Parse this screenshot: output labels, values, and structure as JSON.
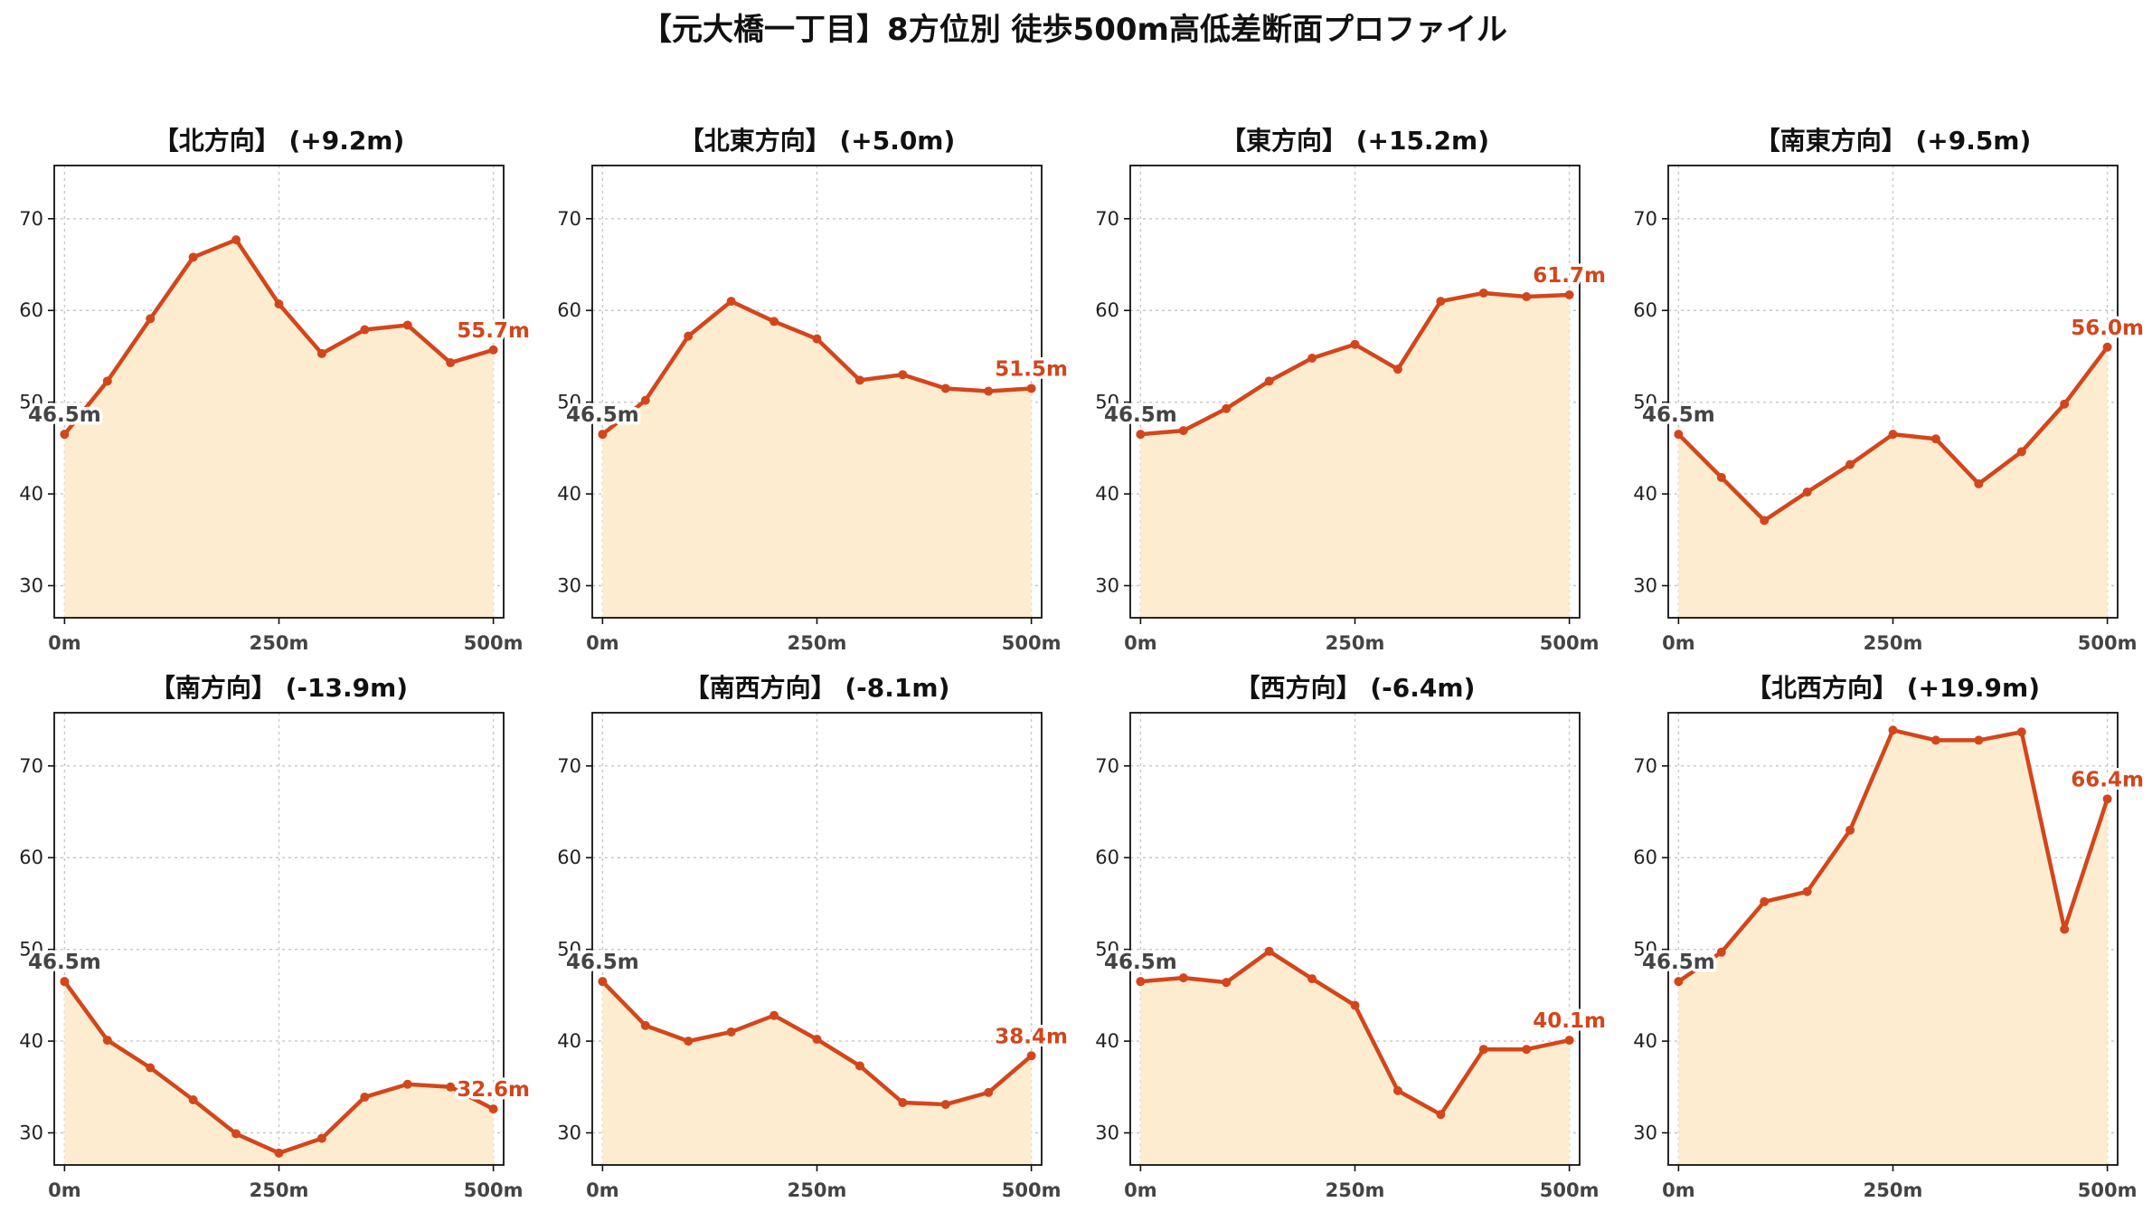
{
  "title": "【元大橋一丁目】8方位別 徒歩500m高低差断面プロファイル",
  "colors": {
    "line": "#d3461c",
    "fill": "#fdeccf",
    "start_label": "#444444",
    "end_label": "#d3461c"
  },
  "chart_data": [
    {
      "type": "area",
      "title": "【北方向】 (+9.2m)",
      "x": [
        0,
        50,
        100,
        150,
        200,
        250,
        300,
        350,
        400,
        450,
        500
      ],
      "values": [
        46.5,
        52.3,
        59.1,
        65.8,
        67.7,
        60.7,
        55.3,
        57.9,
        58.4,
        54.3,
        55.7
      ],
      "ylim": [
        26.5,
        75.8
      ],
      "xlim": [
        -12,
        512
      ],
      "yticks": [
        30,
        40,
        50,
        60,
        70
      ],
      "xticks": [
        0,
        250,
        500
      ],
      "xtick_labels": [
        "0m",
        "250m",
        "500m"
      ],
      "start_label": "46.5m",
      "end_label": "55.7m",
      "grid": true
    },
    {
      "type": "area",
      "title": "【北東方向】 (+5.0m)",
      "x": [
        0,
        50,
        100,
        150,
        200,
        250,
        300,
        350,
        400,
        450,
        500
      ],
      "values": [
        46.5,
        50.2,
        57.2,
        61.0,
        58.8,
        56.9,
        52.4,
        53.0,
        51.5,
        51.2,
        51.5
      ],
      "ylim": [
        26.5,
        75.8
      ],
      "xlim": [
        -12,
        512
      ],
      "yticks": [
        30,
        40,
        50,
        60,
        70
      ],
      "xticks": [
        0,
        250,
        500
      ],
      "xtick_labels": [
        "0m",
        "250m",
        "500m"
      ],
      "start_label": "46.5m",
      "end_label": "51.5m",
      "grid": true
    },
    {
      "type": "area",
      "title": "【東方向】 (+15.2m)",
      "x": [
        0,
        50,
        100,
        150,
        200,
        250,
        300,
        350,
        400,
        450,
        500
      ],
      "values": [
        46.5,
        46.9,
        49.3,
        52.3,
        54.8,
        56.3,
        53.6,
        61.0,
        61.9,
        61.5,
        61.7
      ],
      "ylim": [
        26.5,
        75.8
      ],
      "xlim": [
        -12,
        512
      ],
      "yticks": [
        30,
        40,
        50,
        60,
        70
      ],
      "xticks": [
        0,
        250,
        500
      ],
      "xtick_labels": [
        "0m",
        "250m",
        "500m"
      ],
      "start_label": "46.5m",
      "end_label": "61.7m",
      "grid": true
    },
    {
      "type": "area",
      "title": "【南東方向】 (+9.5m)",
      "x": [
        0,
        50,
        100,
        150,
        200,
        250,
        300,
        350,
        400,
        450,
        500
      ],
      "values": [
        46.5,
        41.8,
        37.1,
        40.2,
        43.2,
        46.5,
        46.0,
        41.1,
        44.6,
        49.8,
        56.0
      ],
      "ylim": [
        26.5,
        75.8
      ],
      "xlim": [
        -12,
        512
      ],
      "yticks": [
        30,
        40,
        50,
        60,
        70
      ],
      "xticks": [
        0,
        250,
        500
      ],
      "xtick_labels": [
        "0m",
        "250m",
        "500m"
      ],
      "start_label": "46.5m",
      "end_label": "56.0m",
      "grid": true
    },
    {
      "type": "area",
      "title": "【南方向】 (-13.9m)",
      "x": [
        0,
        50,
        100,
        150,
        200,
        250,
        300,
        350,
        400,
        450,
        500
      ],
      "values": [
        46.5,
        40.1,
        37.1,
        33.6,
        29.9,
        27.8,
        29.4,
        33.9,
        35.3,
        35.0,
        32.6
      ],
      "ylim": [
        26.5,
        75.8
      ],
      "xlim": [
        -12,
        512
      ],
      "yticks": [
        30,
        40,
        50,
        60,
        70
      ],
      "xticks": [
        0,
        250,
        500
      ],
      "xtick_labels": [
        "0m",
        "250m",
        "500m"
      ],
      "start_label": "46.5m",
      "end_label": "32.6m",
      "grid": true
    },
    {
      "type": "area",
      "title": "【南西方向】 (-8.1m)",
      "x": [
        0,
        50,
        100,
        150,
        200,
        250,
        300,
        350,
        400,
        450,
        500
      ],
      "values": [
        46.5,
        41.7,
        40.0,
        41.0,
        42.8,
        40.2,
        37.3,
        33.3,
        33.1,
        34.4,
        38.4
      ],
      "ylim": [
        26.5,
        75.8
      ],
      "xlim": [
        -12,
        512
      ],
      "yticks": [
        30,
        40,
        50,
        60,
        70
      ],
      "xticks": [
        0,
        250,
        500
      ],
      "xtick_labels": [
        "0m",
        "250m",
        "500m"
      ],
      "start_label": "46.5m",
      "end_label": "38.4m",
      "grid": true
    },
    {
      "type": "area",
      "title": "【西方向】 (-6.4m)",
      "x": [
        0,
        50,
        100,
        150,
        200,
        250,
        300,
        350,
        400,
        450,
        500
      ],
      "values": [
        46.5,
        46.9,
        46.4,
        49.8,
        46.8,
        43.9,
        34.6,
        32.0,
        39.1,
        39.1,
        40.1
      ],
      "ylim": [
        26.5,
        75.8
      ],
      "xlim": [
        -12,
        512
      ],
      "yticks": [
        30,
        40,
        50,
        60,
        70
      ],
      "xticks": [
        0,
        250,
        500
      ],
      "xtick_labels": [
        "0m",
        "250m",
        "500m"
      ],
      "start_label": "46.5m",
      "end_label": "40.1m",
      "grid": true
    },
    {
      "type": "area",
      "title": "【北西方向】 (+19.9m)",
      "x": [
        0,
        50,
        100,
        150,
        200,
        250,
        300,
        350,
        400,
        450,
        500
      ],
      "values": [
        46.5,
        49.7,
        55.2,
        56.3,
        63.0,
        73.9,
        72.8,
        72.8,
        73.7,
        52.2,
        66.4
      ],
      "ylim": [
        26.5,
        75.8
      ],
      "xlim": [
        -12,
        512
      ],
      "yticks": [
        30,
        40,
        50,
        60,
        70
      ],
      "xticks": [
        0,
        250,
        500
      ],
      "xtick_labels": [
        "0m",
        "250m",
        "500m"
      ],
      "start_label": "46.5m",
      "end_label": "66.4m",
      "grid": true
    }
  ]
}
